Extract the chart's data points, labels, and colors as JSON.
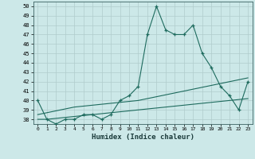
{
  "xlabel": "Humidex (Indice chaleur)",
  "x_values": [
    0,
    1,
    2,
    3,
    4,
    5,
    6,
    7,
    8,
    9,
    10,
    11,
    12,
    13,
    14,
    15,
    16,
    17,
    18,
    19,
    20,
    21,
    22,
    23
  ],
  "y_main": [
    40,
    38,
    37.5,
    38,
    38,
    38.5,
    38.5,
    38,
    38.5,
    40,
    40.5,
    41.5,
    47,
    50,
    47.5,
    47,
    47,
    48,
    45,
    43.5,
    41.5,
    40.5,
    39,
    42
  ],
  "y_lower_bound": [
    38.0,
    38.0,
    38.1,
    38.2,
    38.3,
    38.4,
    38.5,
    38.6,
    38.7,
    38.8,
    38.9,
    39.0,
    39.1,
    39.2,
    39.3,
    39.4,
    39.5,
    39.6,
    39.7,
    39.8,
    39.9,
    40.0,
    40.1,
    40.2
  ],
  "y_upper_bound": [
    38.5,
    38.7,
    38.9,
    39.1,
    39.3,
    39.4,
    39.5,
    39.6,
    39.7,
    39.8,
    39.9,
    40.0,
    40.2,
    40.4,
    40.6,
    40.8,
    41.0,
    41.2,
    41.4,
    41.6,
    41.8,
    42.0,
    42.2,
    42.4
  ],
  "line_color": "#1e6b5e",
  "bg_color": "#cce8e8",
  "grid_color": "#b0cccc",
  "ylim": [
    37.5,
    50.5
  ],
  "ytick_min": 38,
  "ytick_max": 50,
  "xlim": [
    -0.5,
    23.5
  ]
}
